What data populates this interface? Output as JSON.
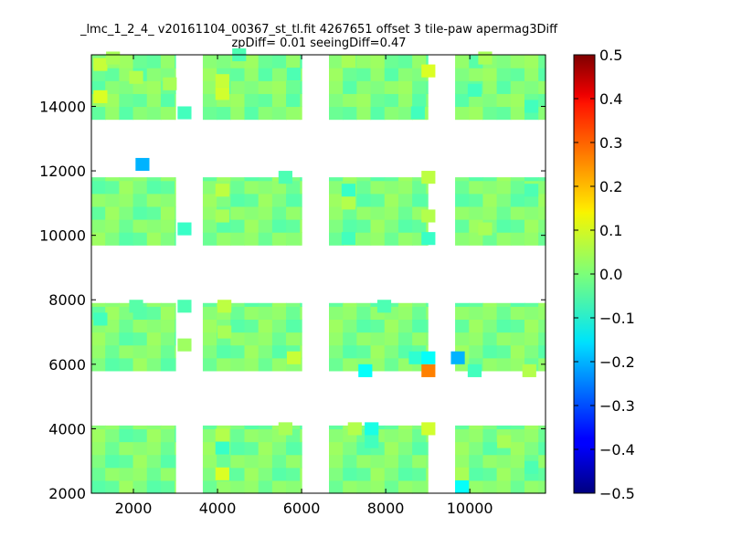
{
  "chart_data": {
    "type": "heatmap",
    "title_line1": "_lmc_1_2_4_ v20161104_00367_st_tl.fit 4267651 offset 3 tile-paw apermag3Diff",
    "title_line2": "zpDiff= 0.01 seeingDiff=0.47",
    "xlabel": "",
    "ylabel": "",
    "xlim": [
      1000,
      11800
    ],
    "ylim": [
      2000,
      15600
    ],
    "xticks": [
      2000,
      4000,
      6000,
      8000,
      10000
    ],
    "yticks": [
      2000,
      4000,
      6000,
      8000,
      10000,
      12000,
      14000
    ],
    "x_tick_labels": [
      "2000",
      "4000",
      "6000",
      "8000",
      "10000"
    ],
    "y_tick_labels": [
      "2000",
      "4000",
      "6000",
      "8000",
      "10000",
      "12000",
      "14000"
    ],
    "colorbar": {
      "colormap": "jet",
      "min": -0.5,
      "max": 0.5,
      "ticks": [
        0.5,
        0.4,
        0.3,
        0.2,
        0.1,
        0.0,
        -0.1,
        -0.2,
        -0.3,
        -0.4,
        -0.5
      ],
      "tick_labels": [
        "0.5",
        "0.4",
        "0.3",
        "0.2",
        "0.1",
        "0.0",
        "−0.1",
        "−0.2",
        "−0.3",
        "−0.4",
        "−0.5"
      ]
    },
    "cell_size": [
      330,
      400
    ],
    "background_value": 0.0,
    "columns": [
      {
        "x_start": 1000,
        "x_end": 3000
      },
      {
        "x_start": 3650,
        "x_end": 6000
      },
      {
        "x_start": 6650,
        "x_end": 9000
      },
      {
        "x_start": 9650,
        "x_end": 11800
      }
    ],
    "rows": [
      {
        "y_start": 2000,
        "y_end": 4100
      },
      {
        "y_start": 5800,
        "y_end": 7900
      },
      {
        "y_start": 9700,
        "y_end": 11800
      },
      {
        "y_start": 13600,
        "y_end": 15600
      }
    ],
    "highlight_cells": [
      {
        "x": 1050,
        "y": 15100,
        "value": 0.07
      },
      {
        "x": 1050,
        "y": 14100,
        "value": 0.09
      },
      {
        "x": 1350,
        "y": 15300,
        "value": 0.04
      },
      {
        "x": 1900,
        "y": 14700,
        "value": 0.05
      },
      {
        "x": 2700,
        "y": 14500,
        "value": 0.04
      },
      {
        "x": 3050,
        "y": 13600,
        "value": -0.06
      },
      {
        "x": 3950,
        "y": 14600,
        "value": 0.07
      },
      {
        "x": 3950,
        "y": 14200,
        "value": 0.08
      },
      {
        "x": 4350,
        "y": 15400,
        "value": -0.05
      },
      {
        "x": 5650,
        "y": 14800,
        "value": -0.05
      },
      {
        "x": 6950,
        "y": 15200,
        "value": 0.04
      },
      {
        "x": 8600,
        "y": 13600,
        "value": -0.06
      },
      {
        "x": 8850,
        "y": 14900,
        "value": 0.09
      },
      {
        "x": 9950,
        "y": 14300,
        "value": -0.06
      },
      {
        "x": 10200,
        "y": 15300,
        "value": 0.04
      },
      {
        "x": 11300,
        "y": 13800,
        "value": -0.06
      },
      {
        "x": 2050,
        "y": 12000,
        "value": -0.2
      },
      {
        "x": 3050,
        "y": 10000,
        "value": -0.07
      },
      {
        "x": 3950,
        "y": 11200,
        "value": 0.06
      },
      {
        "x": 3950,
        "y": 10400,
        "value": 0.04
      },
      {
        "x": 5450,
        "y": 11600,
        "value": -0.05
      },
      {
        "x": 6950,
        "y": 11200,
        "value": -0.07
      },
      {
        "x": 6950,
        "y": 10800,
        "value": 0.05
      },
      {
        "x": 6950,
        "y": 9700,
        "value": -0.06
      },
      {
        "x": 8850,
        "y": 11600,
        "value": 0.06
      },
      {
        "x": 8850,
        "y": 10400,
        "value": 0.05
      },
      {
        "x": 8850,
        "y": 9700,
        "value": -0.07
      },
      {
        "x": 10200,
        "y": 10000,
        "value": 0.04
      },
      {
        "x": 11300,
        "y": 11200,
        "value": -0.05
      },
      {
        "x": 1050,
        "y": 7200,
        "value": -0.06
      },
      {
        "x": 1900,
        "y": 7600,
        "value": -0.04
      },
      {
        "x": 3050,
        "y": 7600,
        "value": -0.05
      },
      {
        "x": 3050,
        "y": 6400,
        "value": 0.03
      },
      {
        "x": 4000,
        "y": 7600,
        "value": 0.06
      },
      {
        "x": 4000,
        "y": 6800,
        "value": 0.04
      },
      {
        "x": 5650,
        "y": 6000,
        "value": 0.07
      },
      {
        "x": 7350,
        "y": 5600,
        "value": -0.12
      },
      {
        "x": 7800,
        "y": 7600,
        "value": -0.05
      },
      {
        "x": 8550,
        "y": 6000,
        "value": -0.08
      },
      {
        "x": 8850,
        "y": 5600,
        "value": 0.25
      },
      {
        "x": 8850,
        "y": 6000,
        "value": -0.12
      },
      {
        "x": 9550,
        "y": 6000,
        "value": -0.2
      },
      {
        "x": 9950,
        "y": 5600,
        "value": -0.06
      },
      {
        "x": 11250,
        "y": 5600,
        "value": 0.05
      },
      {
        "x": 3950,
        "y": 3600,
        "value": 0.05
      },
      {
        "x": 3950,
        "y": 3200,
        "value": -0.07
      },
      {
        "x": 3950,
        "y": 2400,
        "value": 0.09
      },
      {
        "x": 5450,
        "y": 3800,
        "value": 0.04
      },
      {
        "x": 7100,
        "y": 3800,
        "value": 0.05
      },
      {
        "x": 7500,
        "y": 3800,
        "value": -0.1
      },
      {
        "x": 7500,
        "y": 3400,
        "value": -0.06
      },
      {
        "x": 8850,
        "y": 3800,
        "value": 0.08
      },
      {
        "x": 9650,
        "y": 2000,
        "value": -0.12
      },
      {
        "x": 9650,
        "y": 2400,
        "value": 0.04
      },
      {
        "x": 10650,
        "y": 3400,
        "value": 0.04
      },
      {
        "x": 11300,
        "y": 2600,
        "value": -0.05
      }
    ]
  }
}
